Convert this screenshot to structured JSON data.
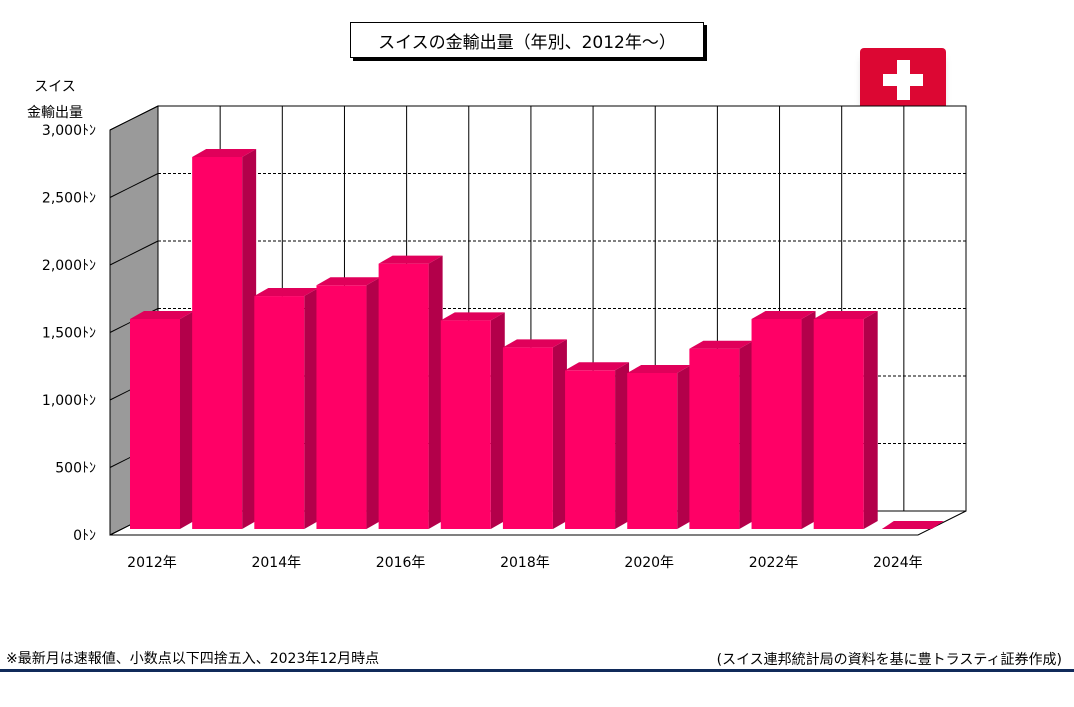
{
  "title": "スイスの金輸出量（年別、2012年～）",
  "y_axis_label": "スイス\n金輸出量",
  "flag_icon": "swiss-flag-icon",
  "footnote": "※最新月は速報値、小数点以下四捨五入、2023年12月時点",
  "source": "(スイス連邦統計局の資料を基に豊トラスティ証券作成)",
  "colors": {
    "bar_front": "#ff0066",
    "bar_side": "#b3004a",
    "bar_top": "#e0005a",
    "wall": "#9a9a9a",
    "floor": "#ffffff",
    "rule": "#102a5a"
  },
  "chart_data": {
    "type": "bar",
    "categories": [
      "2012年",
      "2013年",
      "2014年",
      "2015年",
      "2016年",
      "2017年",
      "2018年",
      "2019年",
      "2020年",
      "2021年",
      "2022年",
      "2023年",
      "2024年"
    ],
    "x_tick_labels": [
      "2012年",
      "",
      "2014年",
      "",
      "2016年",
      "",
      "2018年",
      "",
      "2020年",
      "",
      "2022年",
      "",
      "2024年"
    ],
    "values": [
      1600,
      2800,
      1770,
      1850,
      2010,
      1590,
      1390,
      1220,
      1200,
      1380,
      1600,
      1600,
      0
    ],
    "ylim": [
      0,
      3000
    ],
    "y_ticks": [
      0,
      500,
      1000,
      1500,
      2000,
      2500,
      3000
    ],
    "y_tick_labels": [
      "0ﾄﾝ",
      "500ﾄﾝ",
      "1,000ﾄﾝ",
      "1,500ﾄﾝ",
      "2,000ﾄﾝ",
      "2,500ﾄﾝ",
      "3,000ﾄﾝ"
    ],
    "grid": true,
    "style": "3d"
  }
}
